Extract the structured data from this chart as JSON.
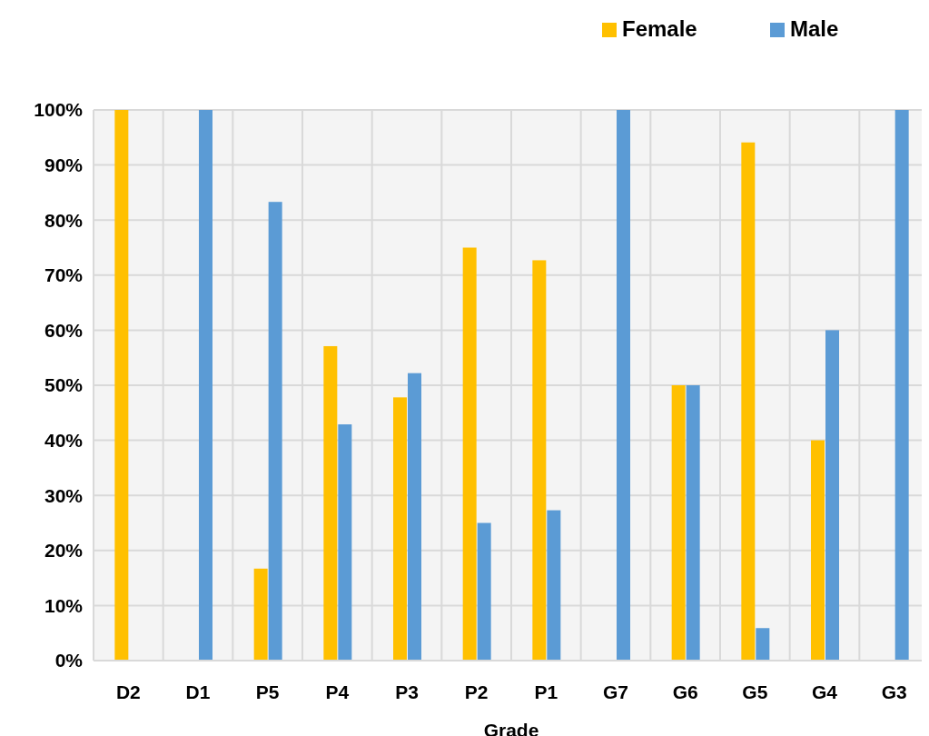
{
  "chart_data": {
    "type": "bar",
    "xlabel": "Grade",
    "categories": [
      "D2",
      "D1",
      "P5",
      "P4",
      "P3",
      "P2",
      "P1",
      "G7",
      "G6",
      "G5",
      "G4",
      "G3"
    ],
    "series": [
      {
        "name": "Female",
        "color": "#ffc000",
        "values": [
          100,
          0,
          16.7,
          57.1,
          47.8,
          75,
          72.7,
          0,
          50,
          94.1,
          40,
          0
        ]
      },
      {
        "name": "Male",
        "color": "#5b9bd5",
        "values": [
          0,
          100,
          83.3,
          42.9,
          52.2,
          25,
          27.3,
          100,
          50,
          5.9,
          60,
          100
        ]
      }
    ],
    "ylim": [
      0,
      100
    ],
    "yticks": [
      {
        "value": 0,
        "label": "0%"
      },
      {
        "value": 10,
        "label": "10%"
      },
      {
        "value": 20,
        "label": "20%"
      },
      {
        "value": 30,
        "label": "30%"
      },
      {
        "value": 40,
        "label": "40%"
      },
      {
        "value": 50,
        "label": "50%"
      },
      {
        "value": 60,
        "label": "60%"
      },
      {
        "value": 70,
        "label": "70%"
      },
      {
        "value": 80,
        "label": "80%"
      },
      {
        "value": 90,
        "label": "90%"
      },
      {
        "value": 100,
        "label": "100%"
      }
    ],
    "grid": true,
    "legend": "top right"
  }
}
